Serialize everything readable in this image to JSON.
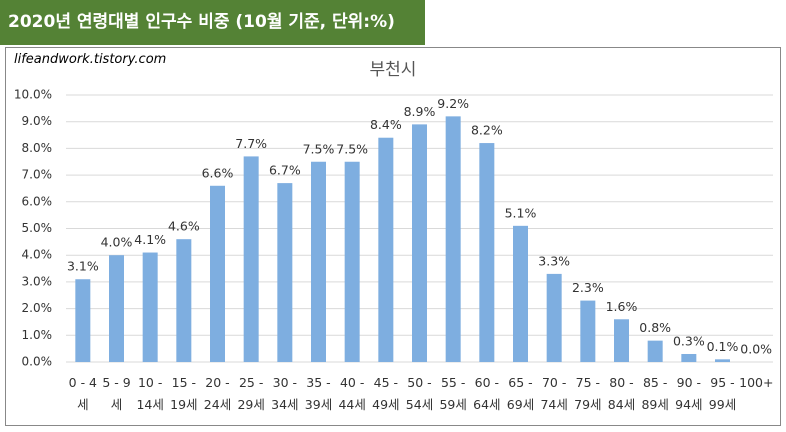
{
  "chart_data": {
    "type": "bar",
    "header": "2020년 연령대별 인구수 비중 (10월 기준, 단위:%)",
    "watermark": "lifeandwork.tistory.com",
    "title": "부천시",
    "categories": [
      "0 - 4세",
      "5 - 9세",
      "10 - 14세",
      "15 - 19세",
      "20 - 24세",
      "25 - 29세",
      "30 - 34세",
      "35 - 39세",
      "40 - 44세",
      "45 - 49세",
      "50 - 54세",
      "55 - 59세",
      "60 - 64세",
      "65 - 69세",
      "70 - 74세",
      "75 - 79세",
      "80 - 84세",
      "85 - 89세",
      "90 - 94세",
      "95 - 99세",
      "100+"
    ],
    "values": [
      3.1,
      4.0,
      4.1,
      4.6,
      6.6,
      7.7,
      6.7,
      7.5,
      7.5,
      8.4,
      8.9,
      9.2,
      8.2,
      5.1,
      3.3,
      2.3,
      1.6,
      0.8,
      0.3,
      0.1,
      0.0
    ],
    "value_labels": [
      "3.1%",
      "4.0%",
      "4.1%",
      "4.6%",
      "6.6%",
      "7.7%",
      "6.7%",
      "7.5%",
      "7.5%",
      "8.4%",
      "8.9%",
      "9.2%",
      "8.2%",
      "5.1%",
      "3.3%",
      "2.3%",
      "1.6%",
      "0.8%",
      "0.3%",
      "0.1%",
      "0.0%"
    ],
    "color": "#7eaee0",
    "ylim": [
      0,
      10
    ],
    "yticks": [
      {
        "value": 0,
        "label": "0.0%"
      },
      {
        "value": 1,
        "label": "1.0%"
      },
      {
        "value": 2,
        "label": "2.0%"
      },
      {
        "value": 3,
        "label": "3.0%"
      },
      {
        "value": 4,
        "label": "4.0%"
      },
      {
        "value": 5,
        "label": "5.0%"
      },
      {
        "value": 6,
        "label": "6.0%"
      },
      {
        "value": 7,
        "label": "7.0%"
      },
      {
        "value": 8,
        "label": "8.0%"
      },
      {
        "value": 9,
        "label": "9.0%"
      },
      {
        "value": 10,
        "label": "10.0%"
      }
    ],
    "grid": true
  }
}
